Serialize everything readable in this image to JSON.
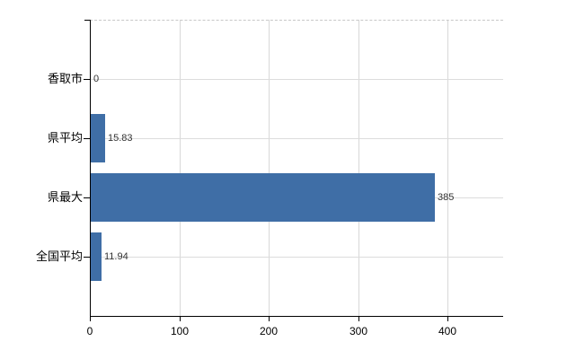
{
  "chart_data": {
    "type": "bar",
    "orientation": "horizontal",
    "title": "",
    "categories": [
      "香取市",
      "県平均",
      "県最大",
      "全国平均"
    ],
    "values": [
      0,
      15.83,
      385,
      11.94
    ],
    "value_labels": [
      "0",
      "15.83",
      "385",
      "11.94"
    ],
    "x_ticks": [
      0,
      100,
      200,
      300,
      400
    ],
    "xlim": [
      0,
      462
    ],
    "grid": true,
    "legend_position": "none",
    "colors": {
      "bar": "#3f6ea6",
      "vertical_gridline": "#d8d8d8",
      "horizontal_gridline": "#dcdcdc",
      "plot_top_border": "#c8c8c8",
      "axis": "#000000",
      "value_label": "#333333",
      "x_tick_label": "#000000",
      "category_label": "#000000",
      "background": "#ffffff"
    }
  }
}
